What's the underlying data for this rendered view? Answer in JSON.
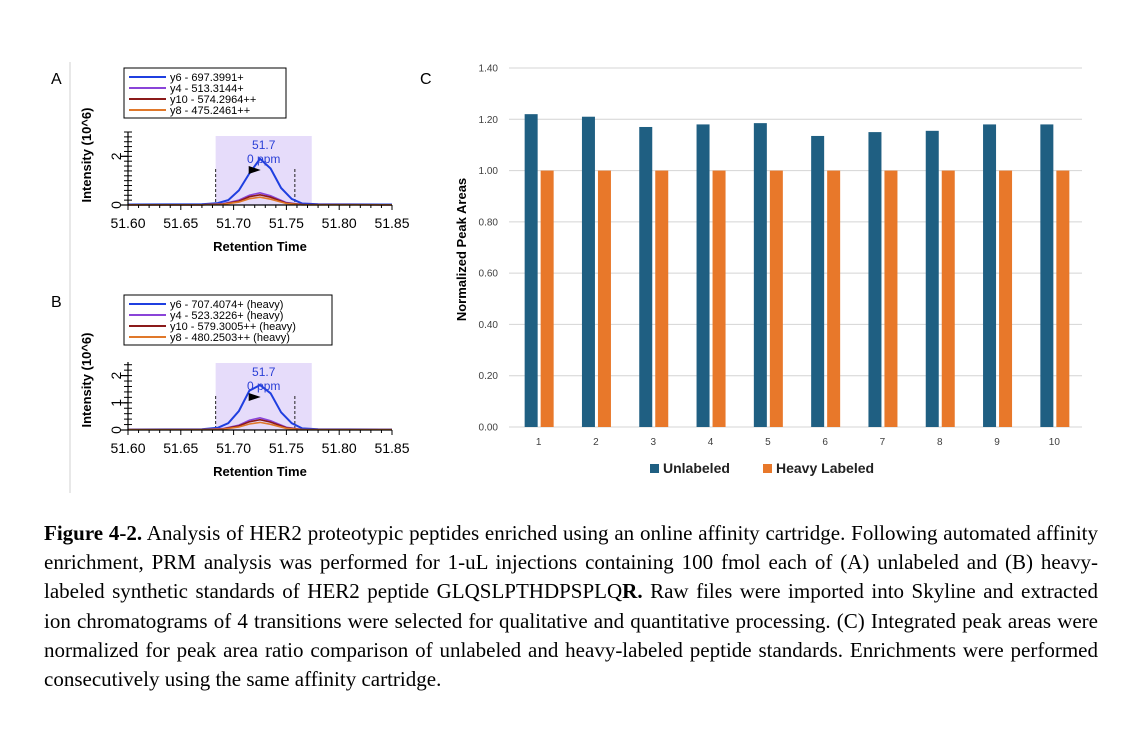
{
  "panel_a": {
    "letter": "A",
    "legend": [
      "y6 - 697.3991+",
      "y4 - 513.3144+",
      "y10 - 574.2964++",
      "y8 - 475.2461++"
    ],
    "peak_label_rt": "51.7",
    "peak_label_ppm": "0 ppm"
  },
  "panel_b": {
    "letter": "B",
    "legend": [
      "y6 - 707.4074+ (heavy)",
      "y4 - 523.3226+ (heavy)",
      "y10 - 579.3005++ (heavy)",
      "y8 - 480.2503++ (heavy)"
    ],
    "peak_label_rt": "51.7",
    "peak_label_ppm": "0 ppm"
  },
  "panel_c": {
    "letter": "C"
  },
  "series_colors": [
    "#1f3fe0",
    "#8a44d8",
    "#8b1a1a",
    "#e0782a"
  ],
  "chart_data": [
    {
      "type": "line",
      "panel": "A",
      "title": "",
      "xlabel": "Retention Time",
      "ylabel": "Intensity (10^6)",
      "xlim": [
        51.6,
        51.85
      ],
      "ylim": [
        0,
        3
      ],
      "x_ticks": [
        "51.60",
        "51.65",
        "51.70",
        "51.75",
        "51.80",
        "51.85"
      ],
      "y_ticks": [
        "0",
        "2"
      ],
      "peak_window": [
        51.683,
        51.774
      ],
      "integration_bounds": [
        51.683,
        51.758
      ],
      "series": [
        {
          "name": "y6 - 697.3991+",
          "x": [
            51.6,
            51.67,
            51.685,
            51.695,
            51.705,
            51.715,
            51.725,
            51.735,
            51.745,
            51.755,
            51.765,
            51.78,
            51.85
          ],
          "values": [
            0.02,
            0.03,
            0.08,
            0.2,
            0.6,
            1.3,
            1.9,
            1.5,
            0.7,
            0.25,
            0.06,
            0.03,
            0.02
          ]
        },
        {
          "name": "y4 - 513.3144+",
          "x": [
            51.6,
            51.67,
            51.69,
            51.705,
            51.715,
            51.725,
            51.735,
            51.75,
            51.765,
            51.85
          ],
          "values": [
            0.01,
            0.01,
            0.05,
            0.2,
            0.4,
            0.5,
            0.38,
            0.1,
            0.02,
            0.01
          ]
        },
        {
          "name": "y10 - 574.2964++",
          "x": [
            51.6,
            51.67,
            51.69,
            51.705,
            51.715,
            51.725,
            51.735,
            51.75,
            51.765,
            51.85
          ],
          "values": [
            0.01,
            0.01,
            0.04,
            0.16,
            0.34,
            0.42,
            0.32,
            0.08,
            0.02,
            0.01
          ]
        },
        {
          "name": "y8 - 475.2461++",
          "x": [
            51.6,
            51.67,
            51.69,
            51.705,
            51.715,
            51.725,
            51.735,
            51.75,
            51.765,
            51.85
          ],
          "values": [
            0.01,
            0.01,
            0.03,
            0.12,
            0.26,
            0.32,
            0.24,
            0.06,
            0.01,
            0.01
          ]
        }
      ]
    },
    {
      "type": "line",
      "panel": "B",
      "title": "",
      "xlabel": "Retention Time",
      "ylabel": "Intensity (10^6)",
      "xlim": [
        51.6,
        51.85
      ],
      "ylim": [
        0,
        2.5
      ],
      "x_ticks": [
        "51.60",
        "51.65",
        "51.70",
        "51.75",
        "51.80",
        "51.85"
      ],
      "y_ticks": [
        "0",
        "1",
        "2"
      ],
      "peak_window": [
        51.683,
        51.774
      ],
      "integration_bounds": [
        51.683,
        51.758
      ],
      "series": [
        {
          "name": "y6 - 707.4074+ (heavy)",
          "x": [
            51.6,
            51.67,
            51.685,
            51.695,
            51.705,
            51.715,
            51.725,
            51.735,
            51.745,
            51.755,
            51.765,
            51.78,
            51.85
          ],
          "values": [
            0.02,
            0.03,
            0.08,
            0.25,
            0.7,
            1.45,
            1.65,
            1.35,
            0.65,
            0.25,
            0.06,
            0.03,
            0.02
          ]
        },
        {
          "name": "y4 - 523.3226+ (heavy)",
          "x": [
            51.6,
            51.67,
            51.69,
            51.705,
            51.715,
            51.725,
            51.735,
            51.75,
            51.765,
            51.85
          ],
          "values": [
            0.01,
            0.01,
            0.05,
            0.18,
            0.36,
            0.45,
            0.34,
            0.1,
            0.02,
            0.01
          ]
        },
        {
          "name": "y10 - 579.3005++ (heavy)",
          "x": [
            51.6,
            51.67,
            51.69,
            51.705,
            51.715,
            51.725,
            51.735,
            51.75,
            51.765,
            51.85
          ],
          "values": [
            0.01,
            0.01,
            0.04,
            0.15,
            0.3,
            0.38,
            0.29,
            0.08,
            0.02,
            0.01
          ]
        },
        {
          "name": "y8 - 480.2503++ (heavy)",
          "x": [
            51.6,
            51.67,
            51.69,
            51.705,
            51.715,
            51.725,
            51.735,
            51.75,
            51.765,
            51.85
          ],
          "values": [
            0.01,
            0.01,
            0.03,
            0.11,
            0.22,
            0.28,
            0.21,
            0.06,
            0.01,
            0.01
          ]
        }
      ]
    },
    {
      "type": "bar",
      "panel": "C",
      "title": "",
      "xlabel": "",
      "ylabel": "Normalized Peak Areas",
      "ylim": [
        0,
        1.4
      ],
      "y_ticks": [
        "0.00",
        "0.20",
        "0.40",
        "0.60",
        "0.80",
        "1.00",
        "1.20",
        "1.40"
      ],
      "grid": true,
      "legend_position": "bottom",
      "categories": [
        "1",
        "2",
        "3",
        "4",
        "5",
        "6",
        "7",
        "8",
        "9",
        "10"
      ],
      "series": [
        {
          "name": "Unlabeled",
          "color": "#1f5f82",
          "values": [
            1.22,
            1.21,
            1.17,
            1.18,
            1.185,
            1.135,
            1.15,
            1.155,
            1.18,
            1.18
          ]
        },
        {
          "name": "Heavy Labeled",
          "color": "#e8782a",
          "values": [
            1.0,
            1.0,
            1.0,
            1.0,
            1.0,
            1.0,
            1.0,
            1.0,
            1.0,
            1.0
          ]
        }
      ]
    }
  ],
  "caption": {
    "label": "Figure 4-2.",
    "text_before_bold": "  Analysis of HER2 proteotypic peptides enriched using an online affinity cartridge. Following automated affinity enrichment, PRM analysis was performed for 1-uL injections containing 100 fmol each of (A) unlabeled and (B) heavy-labeled synthetic standards of HER2 peptide GLQSLPTHDPSPLQ",
    "bold_residue": "R.",
    "text_after_bold": " Raw files were imported into Skyline and extracted ion chromatograms of 4 transitions were selected for qualitative and quantitative processing. (C) Integrated peak areas were normalized for peak area ratio comparison of unlabeled and heavy-labeled peptide standards. Enrichments were performed consecutively using the same affinity cartridge."
  }
}
